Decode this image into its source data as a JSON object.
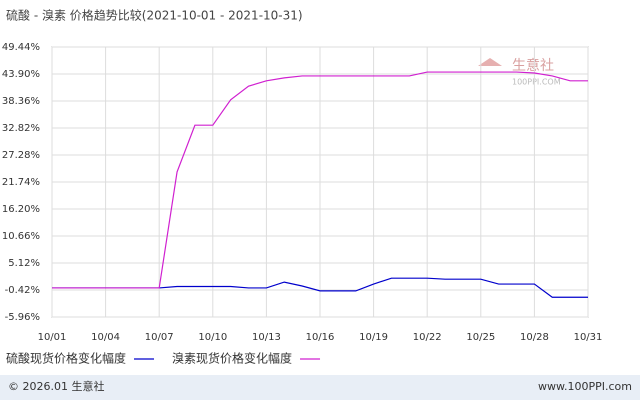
{
  "chart_data": {
    "type": "line",
    "title": "硫酸 - 溴素 价格趋势比较(2021-10-01 - 2021-10-31)",
    "categories": [
      "10/01",
      null,
      null,
      "10/04",
      null,
      null,
      "10/07",
      null,
      null,
      "10/10",
      null,
      null,
      "10/13",
      null,
      null,
      "10/16",
      null,
      null,
      "10/19",
      null,
      null,
      "10/22",
      null,
      null,
      "10/25",
      null,
      null,
      "10/28",
      null,
      null,
      "10/31"
    ],
    "series": [
      {
        "name": "硫酸现货价格变化幅度",
        "color": "#0000cc",
        "values": [
          0,
          0,
          0,
          0,
          0,
          0,
          0,
          0.3,
          0.3,
          0.3,
          0.3,
          0,
          0,
          1.2,
          0.4,
          -0.6,
          -0.6,
          -0.6,
          0.8,
          2.0,
          2.0,
          2.0,
          1.8,
          1.8,
          1.8,
          0.8,
          0.8,
          0.8,
          -1.9,
          -1.9,
          -1.9
        ]
      },
      {
        "name": "溴素现货价格变化幅度",
        "color": "#d020d0",
        "values": [
          0,
          0,
          0,
          0,
          0,
          0,
          0,
          23.8,
          33.4,
          33.4,
          38.6,
          41.4,
          42.5,
          43.1,
          43.5,
          43.5,
          43.5,
          43.5,
          43.5,
          43.5,
          43.5,
          44.3,
          44.3,
          44.3,
          44.3,
          44.3,
          44.3,
          44.1,
          43.5,
          42.5,
          42.5
        ]
      }
    ],
    "ylim": [
      -5.96,
      49.44
    ],
    "yticks": [
      {
        "value": -5.96,
        "label": "-5.96%"
      },
      {
        "value": -0.42,
        "label": "-0.42%"
      },
      {
        "value": 5.12,
        "label": "5.12%"
      },
      {
        "value": 10.66,
        "label": "10.66%"
      },
      {
        "value": 16.2,
        "label": "16.20%"
      },
      {
        "value": 21.74,
        "label": "21.74%"
      },
      {
        "value": 27.28,
        "label": "27.28%"
      },
      {
        "value": 32.82,
        "label": "32.82%"
      },
      {
        "value": 38.36,
        "label": "38.36%"
      },
      {
        "value": 43.9,
        "label": "43.90%"
      },
      {
        "value": 49.44,
        "label": "49.44%"
      }
    ],
    "grid": true
  },
  "watermark": {
    "name": "生意社",
    "site": "100PPI.COM"
  },
  "footer": {
    "copyright": "© 2026.01 生意社",
    "site": "www.100PPI.com"
  }
}
